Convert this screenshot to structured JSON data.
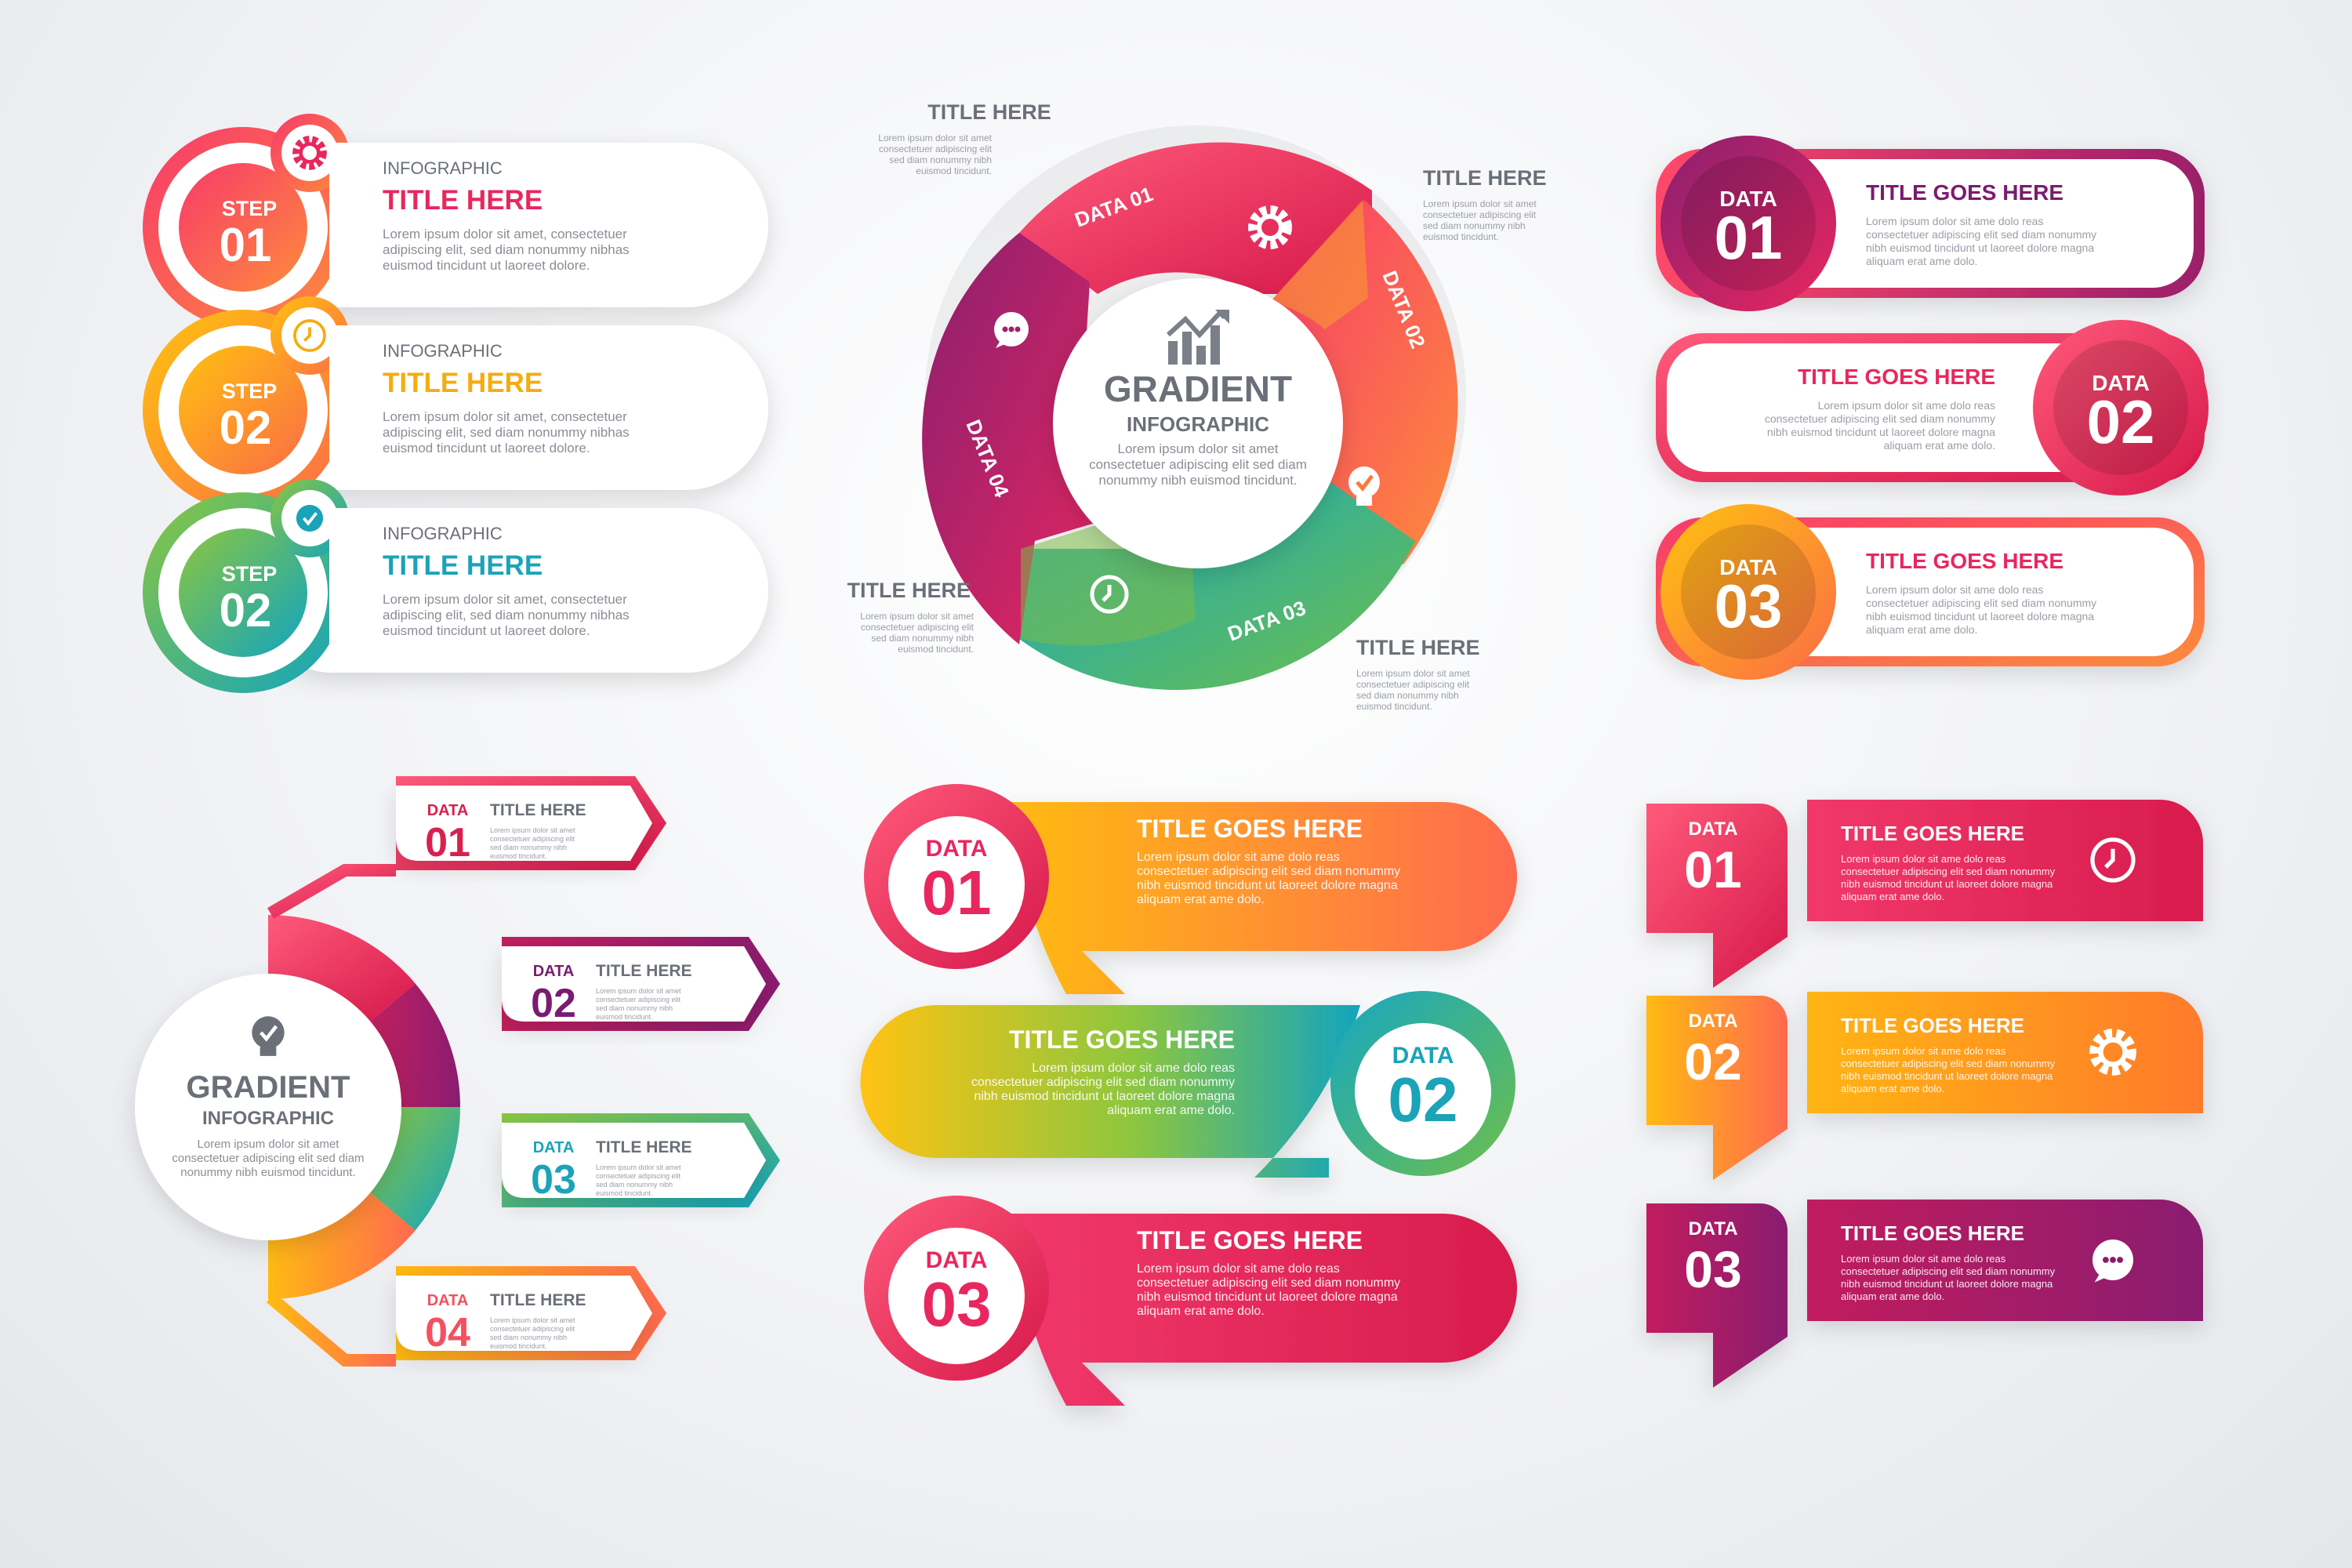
{
  "lorem": {
    "short": [
      "Lorem ipsum dolor sit amet, consectetuer",
      "adipiscing elit, sed diam nonummy nibhas",
      "euismod tincidunt ut laoreet dolore."
    ],
    "block": [
      "Lorem ipsum dolor sit ame dolo reas",
      "consectetuer adipiscing elit sed diam nonummy",
      "nibh euismod tincidunt ut laoreet dolore magna",
      "aliquam erat ame dolo."
    ],
    "tiny": [
      "Lorem ipsum dolor sit amet",
      "consectetuer adipiscing elit",
      "sed diam nonummy nibh",
      "euismod tincidunt."
    ]
  },
  "steps": [
    {
      "step_label": "STEP",
      "number": "01",
      "caption": "INFOGRAPHIC",
      "title": "TITLE HERE",
      "color": "#e8275f",
      "icon": "gear-icon"
    },
    {
      "step_label": "STEP",
      "number": "02",
      "caption": "INFOGRAPHIC",
      "title": "TITLE HERE",
      "color": "#f5ac0f",
      "icon": "clock-icon"
    },
    {
      "step_label": "STEP",
      "number": "02",
      "caption": "INFOGRAPHIC",
      "title": "TITLE HERE",
      "color": "#1ba3b8",
      "icon": "check-icon"
    }
  ],
  "cycle": {
    "title": "GRADIENT",
    "subtitle": "INFOGRAPHIC",
    "body": [
      "Lorem ipsum dolor sit amet",
      "consectetuer adipiscing elit sed diam",
      "nonummy nibh euismod tincidunt."
    ],
    "segments": [
      "DATA 01",
      "DATA 02",
      "DATA 03",
      "DATA 04"
    ],
    "callout_titles": [
      "TITLE HERE",
      "TITLE HERE",
      "TITLE HERE",
      "TITLE HERE"
    ],
    "icons": [
      "gear-icon",
      "bulb-icon",
      "clock-icon",
      "chat-icon",
      "chart-icon"
    ]
  },
  "badges": [
    {
      "label": "DATA",
      "number": "01",
      "title": "TITLE GOES HERE",
      "title_color": "#7b1b6f"
    },
    {
      "label": "DATA",
      "number": "02",
      "title": "TITLE GOES HERE",
      "title_color": "#e8275f"
    },
    {
      "label": "DATA",
      "number": "03",
      "title": "TITLE GOES HERE",
      "title_color": "#e8275f"
    }
  ],
  "tree": {
    "title": "GRADIENT",
    "subtitle": "INFOGRAPHIC",
    "body": [
      "Lorem ipsum dolor sit amet",
      "consectetuer adipiscing elit sed diam",
      "nonummy nibh euismod tincidunt."
    ],
    "icon": "bulb-icon",
    "items": [
      {
        "label": "DATA",
        "number": "01",
        "title": "TITLE HERE",
        "color": "#d8204f"
      },
      {
        "label": "DATA",
        "number": "02",
        "title": "TITLE HERE",
        "color": "#7b1b6f"
      },
      {
        "label": "DATA",
        "number": "03",
        "title": "TITLE HERE",
        "color": "#1ba3b8"
      },
      {
        "label": "DATA",
        "number": "04",
        "title": "TITLE HERE",
        "color": "#f4505f"
      }
    ]
  },
  "waves": [
    {
      "label": "DATA",
      "number": "01",
      "title": "TITLE GOES HERE",
      "color": "#e8275f"
    },
    {
      "label": "DATA",
      "number": "02",
      "title": "TITLE GOES HERE",
      "color": "#1ba3b8"
    },
    {
      "label": "DATA",
      "number": "03",
      "title": "TITLE GOES HERE",
      "color": "#e8275f"
    }
  ],
  "flags": [
    {
      "label": "DATA",
      "number": "01",
      "title": "TITLE GOES HERE",
      "icon": "clock-icon"
    },
    {
      "label": "DATA",
      "number": "02",
      "title": "TITLE GOES HERE",
      "icon": "gear-icon"
    },
    {
      "label": "DATA",
      "number": "03",
      "title": "TITLE GOES HERE",
      "icon": "chat-icon"
    }
  ],
  "colors": {
    "pink": "#e8275f",
    "orange": "#f97b3b",
    "yellow": "#fbb514",
    "purple": "#7b1b6f",
    "teal": "#1ba3b8",
    "green": "#7cbc47",
    "gray_text": "#6b7078",
    "light_text": "#9a9ea6"
  }
}
